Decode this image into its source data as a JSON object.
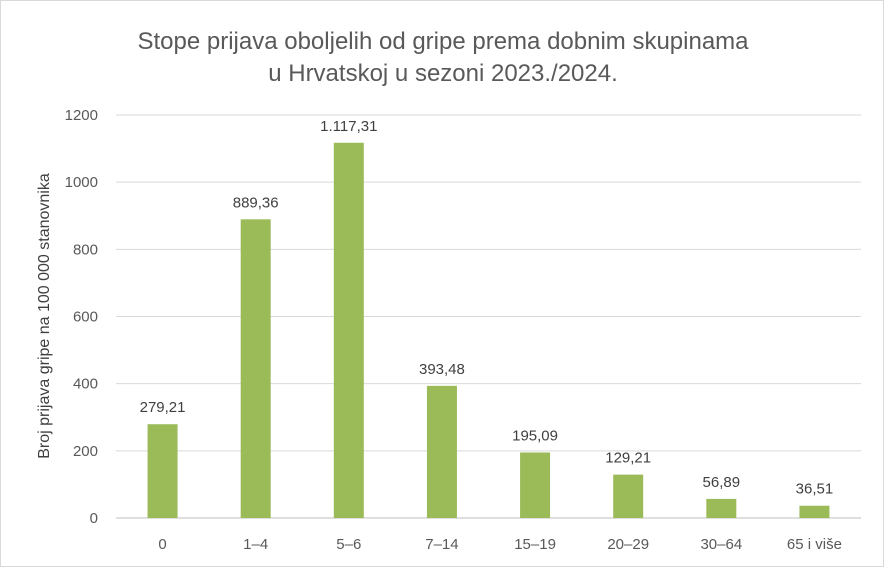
{
  "chart_data": {
    "type": "bar",
    "title": [
      "Stope prijava oboljelih od gripe prema dobnim skupinama",
      "u Hrvatskoj u sezoni 2023./2024."
    ],
    "xlabel": "",
    "ylabel": "Broj prijava gripe na 100 000 stanovnika",
    "categories": [
      "0",
      "1–4",
      "5–6",
      "7–14",
      "15–19",
      "20–29",
      "30–64",
      "65 i više"
    ],
    "values": [
      279.21,
      889.36,
      1117.31,
      393.48,
      195.09,
      129.21,
      56.89,
      36.51
    ],
    "data_labels": [
      "279,21",
      "889,36",
      "1.117,31",
      "393,48",
      "195,09",
      "129,21",
      "56,89",
      "36,51"
    ],
    "ylim": [
      0,
      1200
    ],
    "yticks": [
      0,
      200,
      400,
      600,
      800,
      1000,
      1200
    ],
    "grid": true,
    "bar_color": "#9BBB59",
    "grid_color": "#d9d9d9"
  }
}
